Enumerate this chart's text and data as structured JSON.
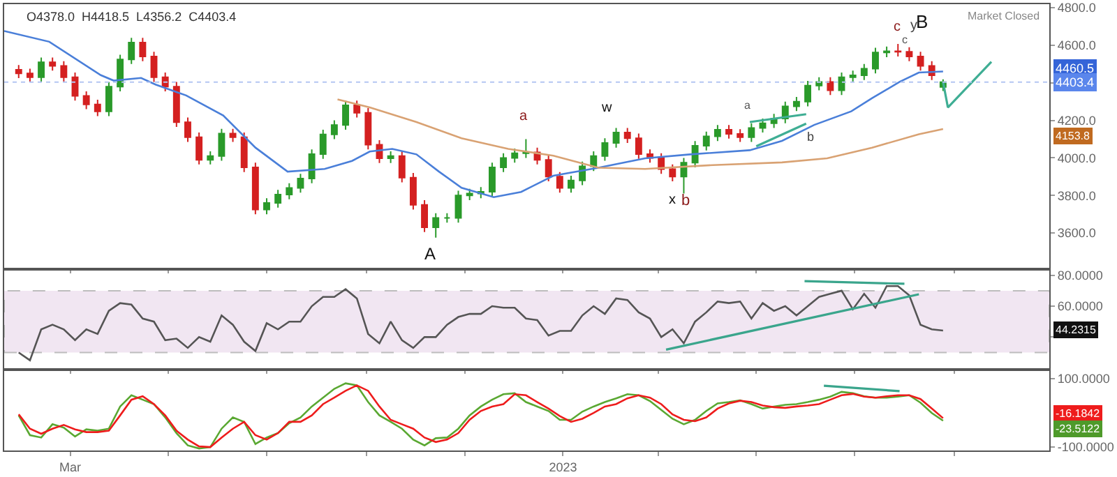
{
  "chart_data": [
    {
      "type": "candlestick",
      "x": [
        "2022-01-28",
        "2022-02-04",
        "2022-02-11",
        "2022-02-18",
        "2022-02-25",
        "2022-03-04",
        "2022-03-11",
        "2022-03-18",
        "2022-03-25",
        "2022-04-01",
        "2022-04-08",
        "2022-04-15",
        "2022-04-22",
        "2022-04-29",
        "2022-05-06",
        "2022-05-13",
        "2022-05-20",
        "2022-05-27",
        "2022-06-03",
        "2022-06-10",
        "2022-06-17",
        "2022-06-24",
        "2022-07-01",
        "2022-07-08",
        "2022-07-15",
        "2022-07-22",
        "2022-07-29",
        "2022-08-05",
        "2022-08-12",
        "2022-08-19",
        "2022-08-26",
        "2022-09-02",
        "2022-09-09",
        "2022-09-16",
        "2022-09-23",
        "2022-09-30",
        "2022-10-07",
        "2022-10-14",
        "2022-10-21",
        "2022-10-28",
        "2022-11-04",
        "2022-11-11",
        "2022-11-18",
        "2022-11-25",
        "2022-12-02",
        "2022-12-09",
        "2022-12-16",
        "2022-12-23",
        "2022-12-30",
        "2023-01-06",
        "2023-01-13",
        "2023-01-20",
        "2023-01-27",
        "2023-02-03",
        "2023-02-10",
        "2023-02-17",
        "2023-02-24",
        "2023-03-03",
        "2023-03-10",
        "2023-03-17",
        "2023-03-24",
        "2023-03-31",
        "2023-04-07",
        "2023-04-14",
        "2023-04-21",
        "2023-04-28",
        "2023-05-05",
        "2023-05-12",
        "2023-05-19",
        "2023-05-26",
        "2023-06-02",
        "2023-06-09",
        "2023-06-16",
        "2023-06-23",
        "2023-06-30",
        "2023-07-07",
        "2023-07-14",
        "2023-07-21",
        "2023-07-28",
        "2023-08-04",
        "2023-08-11",
        "2023-08-18",
        "2023-08-25"
      ],
      "ohlc": [
        [
          4470,
          4495,
          4425,
          4450
        ],
        [
          4450,
          4475,
          4405,
          4430
        ],
        [
          4430,
          4535,
          4405,
          4510
        ],
        [
          4510,
          4535,
          4465,
          4490
        ],
        [
          4490,
          4515,
          4405,
          4430
        ],
        [
          4430,
          4455,
          4305,
          4330
        ],
        [
          4330,
          4355,
          4260,
          4285
        ],
        [
          4285,
          4310,
          4223,
          4248
        ],
        [
          4248,
          4405,
          4223,
          4380
        ],
        [
          4380,
          4550,
          4355,
          4525
        ],
        [
          4525,
          4640,
          4500,
          4615
        ],
        [
          4615,
          4640,
          4515,
          4540
        ],
        [
          4540,
          4565,
          4405,
          4430
        ],
        [
          4430,
          4455,
          4355,
          4380
        ],
        [
          4380,
          4405,
          4165,
          4190
        ],
        [
          4190,
          4215,
          4085,
          4110
        ],
        [
          4110,
          4135,
          3965,
          3990
        ],
        [
          3990,
          4035,
          3965,
          4010
        ],
        [
          4010,
          4155,
          3985,
          4130
        ],
        [
          4130,
          4155,
          4085,
          4110
        ],
        [
          4110,
          4135,
          3925,
          3950
        ],
        [
          3950,
          3975,
          3700,
          3725
        ],
        [
          3725,
          3785,
          3700,
          3760
        ],
        [
          3760,
          3830,
          3735,
          3805
        ],
        [
          3805,
          3865,
          3780,
          3840
        ],
        [
          3840,
          3915,
          3815,
          3890
        ],
        [
          3890,
          4045,
          3865,
          4020
        ],
        [
          4020,
          4150,
          3995,
          4125
        ],
        [
          4125,
          4200,
          4100,
          4175
        ],
        [
          4175,
          4305,
          4150,
          4280
        ],
        [
          4280,
          4305,
          4215,
          4240
        ],
        [
          4240,
          4265,
          4045,
          4070
        ],
        [
          4070,
          4095,
          3973,
          3998
        ],
        [
          3998,
          4035,
          3973,
          4010
        ],
        [
          4010,
          4035,
          3870,
          3895
        ],
        [
          3895,
          3920,
          3725,
          3750
        ],
        [
          3750,
          3775,
          3605,
          3630
        ],
        [
          3630,
          3705,
          3575,
          3680
        ],
        [
          3680,
          3705,
          3655,
          3680
        ],
        [
          3680,
          3825,
          3655,
          3800
        ],
        [
          3800,
          3835,
          3775,
          3810
        ],
        [
          3810,
          3845,
          3785,
          3820
        ],
        [
          3820,
          3975,
          3795,
          3950
        ],
        [
          3950,
          4025,
          3925,
          4000
        ],
        [
          4000,
          4050,
          3975,
          4025
        ],
        [
          4025,
          4100,
          4000,
          4030
        ],
        [
          4030,
          4055,
          3965,
          3990
        ],
        [
          3990,
          4015,
          3875,
          3900
        ],
        [
          3900,
          3925,
          3815,
          3840
        ],
        [
          3840,
          3905,
          3815,
          3880
        ],
        [
          3880,
          3980,
          3855,
          3955
        ],
        [
          3955,
          4035,
          3930,
          4010
        ],
        [
          4010,
          4105,
          3985,
          4080
        ],
        [
          4080,
          4160,
          4055,
          4135
        ],
        [
          4135,
          4160,
          4080,
          4105
        ],
        [
          4105,
          4130,
          3995,
          4020
        ],
        [
          4020,
          4045,
          3975,
          4000
        ],
        [
          4000,
          4025,
          3915,
          3940
        ],
        [
          3940,
          3965,
          3875,
          3900
        ],
        [
          3900,
          4000,
          3810,
          3975
        ],
        [
          3975,
          4090,
          3950,
          4065
        ],
        [
          4065,
          4140,
          4040,
          4115
        ],
        [
          4115,
          4175,
          4090,
          4150
        ],
        [
          4150,
          4175,
          4103,
          4128
        ],
        [
          4128,
          4153,
          4085,
          4110
        ],
        [
          4110,
          4185,
          4085,
          4160
        ],
        [
          4160,
          4210,
          4135,
          4185
        ],
        [
          4185,
          4235,
          4160,
          4210
        ],
        [
          4210,
          4300,
          4185,
          4275
        ],
        [
          4275,
          4325,
          4250,
          4300
        ],
        [
          4300,
          4410,
          4275,
          4385
        ],
        [
          4385,
          4430,
          4360,
          4405
        ],
        [
          4405,
          4430,
          4335,
          4360
        ],
        [
          4360,
          4455,
          4335,
          4430
        ],
        [
          4430,
          4465,
          4405,
          4440
        ],
        [
          4440,
          4500,
          4415,
          4475
        ],
        [
          4475,
          4587,
          4450,
          4562
        ],
        [
          4562,
          4593,
          4537,
          4568
        ],
        [
          4568,
          4607,
          4540,
          4565
        ],
        [
          4565,
          4590,
          4515,
          4540
        ],
        [
          4540,
          4565,
          4465,
          4490
        ],
        [
          4490,
          4515,
          4415,
          4440
        ],
        [
          4378,
          4418.5,
          4356.2,
          4403.4
        ]
      ],
      "series": [
        {
          "type": "line",
          "color": "#4a7fd9",
          "x": [
            "2022-01-19",
            "2022-02-16",
            "2022-03-20",
            "2022-03-28",
            "2022-04-14",
            "2022-04-23",
            "2022-05-12",
            "2022-06-04",
            "2022-06-24",
            "2022-07-14",
            "2022-08-06",
            "2022-08-23",
            "2022-09-03",
            "2022-09-17",
            "2022-10-02",
            "2022-10-16",
            "2022-10-30",
            "2022-11-19",
            "2022-12-06",
            "2022-12-26",
            "2023-01-23",
            "2023-02-21",
            "2023-03-21",
            "2023-04-27",
            "2023-05-17",
            "2023-06-06",
            "2023-06-29",
            "2023-07-12",
            "2023-07-29",
            "2023-08-10",
            "2023-08-25"
          ],
          "values": [
            4676,
            4619,
            4441,
            4412,
            4426,
            4391,
            4333,
            4226,
            4055,
            3927,
            3941,
            3984,
            4034,
            4048,
            4019,
            3927,
            3841,
            3791,
            3819,
            3905,
            3948,
            3998,
            4019,
            4041,
            4091,
            4176,
            4248,
            4319,
            4405,
            4455,
            4460.5
          ]
        },
        {
          "type": "line",
          "color": "#d9a273",
          "x": [
            "2022-08-14",
            "2022-09-03",
            "2022-10-02",
            "2022-10-30",
            "2022-11-28",
            "2022-12-26",
            "2023-01-23",
            "2023-02-21",
            "2023-04-04",
            "2023-05-17",
            "2023-06-14",
            "2023-07-12",
            "2023-08-10",
            "2023-08-25"
          ],
          "values": [
            4312,
            4269,
            4191,
            4105,
            4048,
            4012,
            3948,
            3941,
            3962,
            3976,
            3998,
            4055,
            4126,
            4153.8
          ]
        },
        {
          "type": "line",
          "color": "#3fae94",
          "x": [
            "2023-04-27",
            "2023-06-01"
          ],
          "values": [
            4191,
            4233
          ]
        },
        {
          "type": "line",
          "color": "#3fae94",
          "x": [
            "2023-05-01",
            "2023-06-01"
          ],
          "values": [
            4062,
            4183
          ]
        },
        {
          "type": "line",
          "color": "#3fae94",
          "x": [
            "2023-08-25",
            "2023-08-28",
            "2023-09-24"
          ],
          "values": [
            4405,
            4269,
            4512
          ]
        }
      ],
      "ref_lines": [
        {
          "axis": "y",
          "value": 4403.4,
          "color": "#b4c6f2",
          "line_style": "dotted"
        }
      ],
      "annotations": [
        "O4378.0  H4418.5  L4356.2  C4403.4",
        "Market Closed",
        "a",
        "A",
        "w",
        "x",
        "b",
        "a",
        "b",
        "c",
        "c",
        "y",
        "B",
        "4460.5",
        "4403.4",
        "4153.8"
      ],
      "xlim": [
        "2022-01-19",
        "2023-10-30"
      ],
      "xticks": [
        {
          "value": "2022-03-01",
          "label": null
        },
        {
          "value": "2022-05-01",
          "label": null
        },
        {
          "value": "2022-07-01",
          "label": null
        },
        {
          "value": "2022-09-01",
          "label": null
        },
        {
          "value": "2022-11-01",
          "label": null
        },
        {
          "value": "2023-01-01",
          "label": null
        },
        {
          "value": "2023-03-01",
          "label": null
        },
        {
          "value": "2023-05-01",
          "label": null
        },
        {
          "value": "2023-07-01",
          "label": null
        },
        {
          "value": "2023-09-01",
          "label": null
        }
      ],
      "ylim": [
        3414,
        4819
      ],
      "yticks": [
        {
          "value": 3600,
          "label": "3600.0"
        },
        {
          "value": 3800,
          "label": "3800.0"
        },
        {
          "value": 4000,
          "label": "4000.0"
        },
        {
          "value": 4200,
          "label": "4200.0"
        },
        {
          "value": 4400,
          "label": null
        },
        {
          "value": 4600,
          "label": "4600.0"
        },
        {
          "value": 4800,
          "label": "4800.0"
        }
      ],
      "tick_labels": "y"
    },
    {
      "type": "line",
      "x": [
        "2022-01-28",
        "2022-02-04",
        "2022-02-11",
        "2022-02-18",
        "2022-02-25",
        "2022-03-04",
        "2022-03-11",
        "2022-03-18",
        "2022-03-25",
        "2022-04-01",
        "2022-04-08",
        "2022-04-15",
        "2022-04-22",
        "2022-04-29",
        "2022-05-06",
        "2022-05-13",
        "2022-05-20",
        "2022-05-27",
        "2022-06-03",
        "2022-06-10",
        "2022-06-17",
        "2022-06-24",
        "2022-07-01",
        "2022-07-08",
        "2022-07-15",
        "2022-07-22",
        "2022-07-29",
        "2022-08-05",
        "2022-08-12",
        "2022-08-19",
        "2022-08-26",
        "2022-09-02",
        "2022-09-09",
        "2022-09-16",
        "2022-09-23",
        "2022-09-30",
        "2022-10-07",
        "2022-10-14",
        "2022-10-21",
        "2022-10-28",
        "2022-11-04",
        "2022-11-11",
        "2022-11-18",
        "2022-11-25",
        "2022-12-02",
        "2022-12-09",
        "2022-12-16",
        "2022-12-23",
        "2022-12-30",
        "2023-01-06",
        "2023-01-13",
        "2023-01-20",
        "2023-01-27",
        "2023-02-03",
        "2023-02-10",
        "2023-02-17",
        "2023-02-24",
        "2023-03-03",
        "2023-03-10",
        "2023-03-17",
        "2023-03-24",
        "2023-03-31",
        "2023-04-07",
        "2023-04-14",
        "2023-04-21",
        "2023-04-28",
        "2023-05-05",
        "2023-05-12",
        "2023-05-19",
        "2023-05-26",
        "2023-06-02",
        "2023-06-09",
        "2023-06-16",
        "2023-06-23",
        "2023-06-30",
        "2023-07-07",
        "2023-07-14",
        "2023-07-21",
        "2023-07-28",
        "2023-08-04",
        "2023-08-11",
        "2023-08-18",
        "2023-08-25"
      ],
      "series": [
        {
          "color": "#555555",
          "values": [
            30,
            25,
            45,
            48,
            45,
            38,
            45,
            42,
            57,
            62,
            61,
            52,
            50,
            38,
            39,
            33,
            40,
            37,
            54,
            48,
            37,
            31,
            49,
            45,
            50,
            50,
            60,
            66,
            66,
            71,
            65,
            42,
            36,
            50,
            38,
            33,
            40,
            40,
            48,
            53,
            55,
            55,
            60,
            59,
            59,
            52,
            51,
            41,
            44,
            44,
            54,
            60,
            55,
            65,
            64,
            56,
            52,
            40,
            45,
            36,
            50,
            56,
            63,
            62,
            63,
            52,
            62,
            57,
            60,
            54,
            60,
            66,
            68,
            70,
            58,
            68,
            59,
            73,
            73,
            67,
            48,
            45,
            44.2315
          ]
        },
        {
          "color": "#3aa58c",
          "x": [
            "2023-03-06",
            "2023-08-10"
          ],
          "values": [
            31.9,
            67.7
          ]
        },
        {
          "color": "#3aa58c",
          "x": [
            "2023-05-31",
            "2023-08-01"
          ],
          "values": [
            76.2,
            74.5
          ]
        }
      ],
      "bands": [
        {
          "axis": "y",
          "from": 30,
          "to": 70,
          "color": "#f1e6f2"
        }
      ],
      "annotations": [
        "44.2315"
      ],
      "xlim": [
        "2022-01-19",
        "2023-10-30"
      ],
      "xticks": [
        {
          "value": "2022-03-01",
          "label": null
        },
        {
          "value": "2022-05-01",
          "label": null
        },
        {
          "value": "2022-07-01",
          "label": null
        },
        {
          "value": "2022-09-01",
          "label": null
        },
        {
          "value": "2022-11-01",
          "label": null
        },
        {
          "value": "2023-01-01",
          "label": null
        },
        {
          "value": "2023-03-01",
          "label": null
        },
        {
          "value": "2023-05-01",
          "label": null
        },
        {
          "value": "2023-07-01",
          "label": null
        },
        {
          "value": "2023-09-01",
          "label": null
        }
      ],
      "ylim": [
        20,
        83
      ],
      "yticks": [
        {
          "value": 40,
          "label": null
        },
        {
          "value": 60,
          "label": "60.0000"
        },
        {
          "value": 80,
          "label": "80.0000"
        }
      ],
      "tick_labels": "y"
    },
    {
      "type": "line",
      "x": [
        "2022-01-28",
        "2022-02-04",
        "2022-02-11",
        "2022-02-18",
        "2022-02-25",
        "2022-03-04",
        "2022-03-11",
        "2022-03-18",
        "2022-03-25",
        "2022-04-01",
        "2022-04-08",
        "2022-04-15",
        "2022-04-22",
        "2022-04-29",
        "2022-05-06",
        "2022-05-13",
        "2022-05-20",
        "2022-05-27",
        "2022-06-03",
        "2022-06-10",
        "2022-06-17",
        "2022-06-24",
        "2022-07-01",
        "2022-07-08",
        "2022-07-15",
        "2022-07-22",
        "2022-07-29",
        "2022-08-05",
        "2022-08-12",
        "2022-08-19",
        "2022-08-26",
        "2022-09-02",
        "2022-09-09",
        "2022-09-16",
        "2022-09-23",
        "2022-09-30",
        "2022-10-07",
        "2022-10-14",
        "2022-10-21",
        "2022-10-28",
        "2022-11-04",
        "2022-11-11",
        "2022-11-18",
        "2022-11-25",
        "2022-12-02",
        "2022-12-09",
        "2022-12-16",
        "2022-12-23",
        "2022-12-30",
        "2023-01-06",
        "2023-01-13",
        "2023-01-20",
        "2023-01-27",
        "2023-02-03",
        "2023-02-10",
        "2023-02-17",
        "2023-02-24",
        "2023-03-03",
        "2023-03-10",
        "2023-03-17",
        "2023-03-24",
        "2023-03-31",
        "2023-04-07",
        "2023-04-14",
        "2023-04-21",
        "2023-04-28",
        "2023-05-05",
        "2023-05-12",
        "2023-05-19",
        "2023-05-26",
        "2023-06-02",
        "2023-06-09",
        "2023-06-16",
        "2023-06-23",
        "2023-06-30",
        "2023-07-07",
        "2023-07-14",
        "2023-07-21",
        "2023-07-28",
        "2023-08-04",
        "2023-08-11",
        "2023-08-18",
        "2023-08-25"
      ],
      "series": [
        {
          "color": "#5aa832",
          "values": [
            -8,
            -66,
            -73,
            -34,
            -44,
            -70,
            -49,
            -53,
            -47,
            18,
            51,
            38,
            25,
            -14,
            -60,
            -96,
            -105,
            -101,
            -47,
            -14,
            -27,
            -92,
            -73,
            -60,
            -31,
            -14,
            18,
            44,
            70,
            86,
            80,
            31,
            -8,
            -27,
            -47,
            -79,
            -96,
            -75,
            -73,
            -47,
            -8,
            18,
            38,
            54,
            57,
            31,
            18,
            5,
            -21,
            -21,
            3,
            18,
            31,
            42,
            54,
            51,
            34,
            8,
            -18,
            -34,
            -21,
            5,
            27,
            31,
            36,
            25,
            12,
            18,
            23,
            25,
            31,
            38,
            47,
            61,
            57,
            48,
            44,
            44,
            47,
            51,
            29,
            -1,
            -23.5122
          ]
        },
        {
          "color": "#ee1c1c",
          "values": [
            -5,
            -47,
            -62,
            -47,
            -36,
            -49,
            -57,
            -57,
            -53,
            -8,
            38,
            48,
            25,
            -8,
            -53,
            -79,
            -99,
            -101,
            -73,
            -47,
            -27,
            -66,
            -79,
            -60,
            -27,
            -27,
            -8,
            25,
            44,
            64,
            80,
            64,
            18,
            -21,
            -34,
            -47,
            -73,
            -86,
            -79,
            -60,
            -21,
            5,
            18,
            25,
            54,
            51,
            31,
            12,
            -10,
            -27,
            -18,
            -1,
            18,
            25,
            42,
            51,
            44,
            25,
            -5,
            -21,
            -25,
            -14,
            12,
            27,
            35,
            31,
            21,
            16,
            14,
            18,
            21,
            25,
            38,
            51,
            55,
            47,
            44,
            48,
            51,
            51,
            40,
            12,
            -16.1842
          ]
        },
        {
          "color": "#3aa58c",
          "x": [
            "2023-06-12",
            "2023-07-29"
          ],
          "values": [
            79,
            63
          ]
        }
      ],
      "annotations": [
        "-16.1842",
        "-23.5122"
      ],
      "xlim": [
        "2022-01-19",
        "2023-10-30"
      ],
      "xticks": [
        {
          "value": "2022-03-01",
          "label": "Mar"
        },
        {
          "value": "2022-05-01",
          "label": null
        },
        {
          "value": "2022-07-01",
          "label": null
        },
        {
          "value": "2022-09-01",
          "label": null
        },
        {
          "value": "2022-11-01",
          "label": null
        },
        {
          "value": "2023-01-01",
          "label": "2023"
        },
        {
          "value": "2023-03-01",
          "label": null
        },
        {
          "value": "2023-05-01",
          "label": null
        },
        {
          "value": "2023-07-01",
          "label": null
        },
        {
          "value": "2023-09-01",
          "label": null
        }
      ],
      "ylim": [
        -111,
        123
      ],
      "yticks": [
        {
          "value": -100,
          "label": "-100.0000"
        },
        {
          "value": 100,
          "label": "100.0000"
        }
      ]
    }
  ]
}
